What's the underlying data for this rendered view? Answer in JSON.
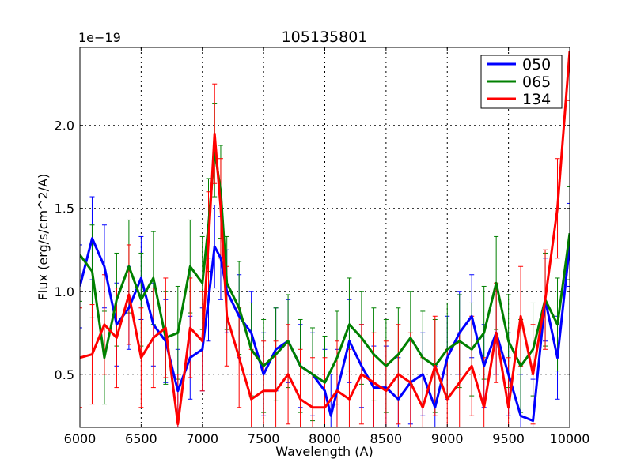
{
  "chart_data": {
    "type": "line",
    "title": "105135801",
    "xlabel": "Wavelength (A)",
    "ylabel": "Flux (erg/s/cm^2/A)",
    "offset_label": "1e−19",
    "xlim": [
      6000,
      10000
    ],
    "ylim": [
      0.18,
      2.47
    ],
    "xticks": [
      6000,
      6500,
      7000,
      7500,
      8000,
      8500,
      9000,
      9500,
      10000
    ],
    "xtick_labels": [
      "6000",
      "6500",
      "7000",
      "7500",
      "8000",
      "8500",
      "9000",
      "9500",
      "10000"
    ],
    "yticks": [
      0.5,
      1.0,
      1.5,
      2.0
    ],
    "ytick_labels": [
      "0.5",
      "1.0",
      "1.5",
      "2.0"
    ],
    "grid": true,
    "legend_position": "top-right",
    "series": [
      {
        "name": "050",
        "color": "#0000ff",
        "x": [
          6000,
          6100,
          6200,
          6300,
          6400,
          6500,
          6600,
          6700,
          6800,
          6900,
          7000,
          7050,
          7100,
          7150,
          7200,
          7300,
          7400,
          7500,
          7600,
          7700,
          7800,
          7900,
          8000,
          8050,
          8100,
          8200,
          8300,
          8400,
          8500,
          8600,
          8700,
          8800,
          8900,
          9000,
          9100,
          9200,
          9300,
          9400,
          9500,
          9600,
          9700,
          9800,
          9900,
          10000
        ],
        "values": [
          1.03,
          1.32,
          1.15,
          0.8,
          0.9,
          1.08,
          0.8,
          0.7,
          0.4,
          0.6,
          0.65,
          0.95,
          1.27,
          1.2,
          1.0,
          0.85,
          0.75,
          0.5,
          0.65,
          0.7,
          0.55,
          0.5,
          0.4,
          0.25,
          0.4,
          0.7,
          0.55,
          0.42,
          0.42,
          0.35,
          0.45,
          0.5,
          0.3,
          0.6,
          0.75,
          0.85,
          0.55,
          0.75,
          0.5,
          0.25,
          0.22,
          0.95,
          0.6,
          1.28
        ],
        "error": 0.25
      },
      {
        "name": "065",
        "color": "#008000",
        "x": [
          6000,
          6100,
          6200,
          6300,
          6400,
          6500,
          6600,
          6700,
          6800,
          6900,
          7000,
          7050,
          7100,
          7150,
          7200,
          7300,
          7400,
          7500,
          7600,
          7700,
          7800,
          7900,
          8000,
          8100,
          8200,
          8300,
          8400,
          8500,
          8600,
          8700,
          8800,
          8900,
          9000,
          9100,
          9200,
          9300,
          9400,
          9500,
          9600,
          9700,
          9800,
          9900,
          10000
        ],
        "values": [
          1.22,
          1.12,
          0.6,
          0.95,
          1.15,
          0.95,
          1.08,
          0.72,
          0.75,
          1.15,
          1.05,
          1.4,
          1.85,
          1.6,
          1.05,
          0.9,
          0.65,
          0.55,
          0.62,
          0.7,
          0.55,
          0.5,
          0.45,
          0.6,
          0.8,
          0.72,
          0.62,
          0.55,
          0.62,
          0.72,
          0.6,
          0.55,
          0.65,
          0.7,
          0.65,
          0.75,
          1.05,
          0.7,
          0.55,
          0.65,
          0.95,
          0.8,
          1.35
        ],
        "error": 0.28
      },
      {
        "name": "134",
        "color": "#ff0000",
        "x": [
          6000,
          6100,
          6200,
          6300,
          6400,
          6500,
          6600,
          6700,
          6800,
          6900,
          7000,
          7050,
          7100,
          7150,
          7200,
          7300,
          7400,
          7500,
          7600,
          7700,
          7800,
          7900,
          8000,
          8100,
          8200,
          8300,
          8400,
          8500,
          8600,
          8700,
          8800,
          8900,
          9000,
          9100,
          9200,
          9300,
          9400,
          9500,
          9600,
          9700,
          9800,
          9900,
          10000
        ],
        "values": [
          0.6,
          0.62,
          0.8,
          0.72,
          0.98,
          0.6,
          0.72,
          0.78,
          0.2,
          0.78,
          0.7,
          1.3,
          1.95,
          1.5,
          0.85,
          0.6,
          0.35,
          0.4,
          0.4,
          0.5,
          0.35,
          0.3,
          0.3,
          0.4,
          0.35,
          0.5,
          0.45,
          0.4,
          0.5,
          0.45,
          0.3,
          0.55,
          0.35,
          0.45,
          0.55,
          0.3,
          0.75,
          0.3,
          0.85,
          0.5,
          0.95,
          1.5,
          2.45
        ],
        "error": 0.3
      }
    ]
  }
}
